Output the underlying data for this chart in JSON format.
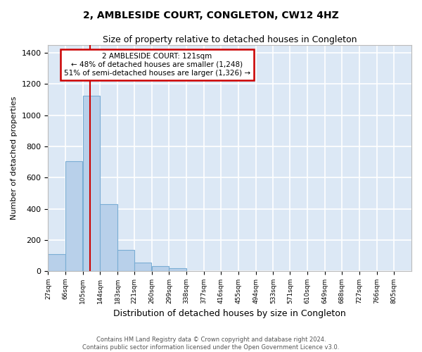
{
  "title": "2, AMBLESIDE COURT, CONGLETON, CW12 4HZ",
  "subtitle": "Size of property relative to detached houses in Congleton",
  "xlabel": "Distribution of detached houses by size in Congleton",
  "ylabel": "Number of detached properties",
  "footer_line1": "Contains HM Land Registry data © Crown copyright and database right 2024.",
  "footer_line2": "Contains public sector information licensed under the Open Government Licence v3.0.",
  "bar_color": "#b8d0ea",
  "bar_edge_color": "#7aadd4",
  "bg_color": "#dce8f5",
  "grid_color": "#ffffff",
  "annotation_line1": "2 AMBLESIDE COURT: 121sqm",
  "annotation_line2": "← 48% of detached houses are smaller (1,248)",
  "annotation_line3": "51% of semi-detached houses are larger (1,326) →",
  "annotation_box_color": "#ffffff",
  "annotation_border_color": "#cc0000",
  "vline_color": "#cc0000",
  "vline_x": 121,
  "categories": [
    "27sqm",
    "66sqm",
    "105sqm",
    "144sqm",
    "183sqm",
    "221sqm",
    "260sqm",
    "299sqm",
    "338sqm",
    "377sqm",
    "416sqm",
    "455sqm",
    "494sqm",
    "533sqm",
    "571sqm",
    "610sqm",
    "649sqm",
    "688sqm",
    "727sqm",
    "766sqm",
    "805sqm"
  ],
  "bin_edges": [
    27,
    66,
    105,
    144,
    183,
    221,
    260,
    299,
    338,
    377,
    416,
    455,
    494,
    533,
    571,
    610,
    649,
    688,
    727,
    766,
    805
  ],
  "bin_width": 39,
  "values": [
    110,
    705,
    1125,
    430,
    135,
    55,
    32,
    18,
    0,
    0,
    0,
    0,
    0,
    0,
    0,
    0,
    0,
    0,
    0,
    0,
    0
  ],
  "ylim": [
    0,
    1450
  ],
  "yticks": [
    0,
    200,
    400,
    600,
    800,
    1000,
    1200,
    1400
  ],
  "fig_width": 6.0,
  "fig_height": 5.0,
  "fig_dpi": 100
}
